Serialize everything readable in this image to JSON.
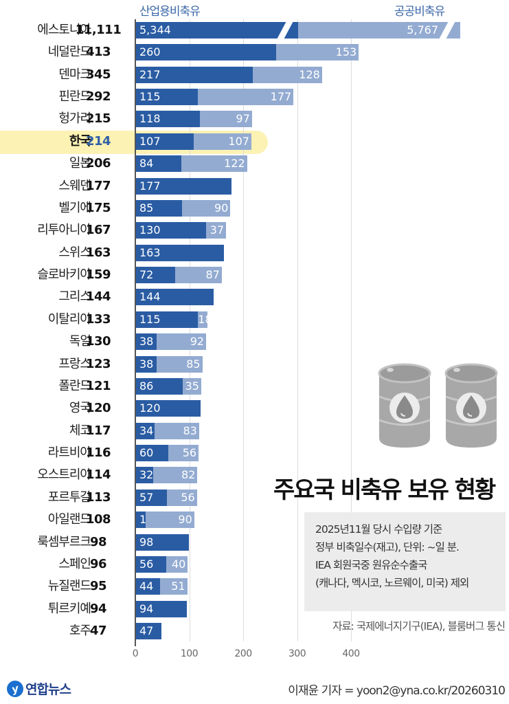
{
  "legend": {
    "industry": "산업용비축유",
    "public": "공공비축유"
  },
  "title": "주요국 비축유 보유 현황",
  "notes": [
    "2025년11월 당시 수입량 기준",
    "정부 비축일수(재고), 단위: ~일 분.",
    "IEA 회원국중 원유순수출국",
    "(캐나다, 멕시코, 노르웨이, 미국) 제외"
  ],
  "source": "자료: 국제에너지기구(IEA), 블룸버그 통신",
  "footer": {
    "logo_text": "연합뉴스",
    "logo_mark": "y",
    "byline": "이재윤 기자 = yoon2@yna.co.kr/20260310"
  },
  "axis": {
    "ticks": [
      "0",
      "100",
      "200",
      "300",
      "400"
    ]
  },
  "colors": {
    "industry": "#2a5ca3",
    "public": "#93abd1",
    "highlight": "#fbf2b4",
    "legend_text": "#3a66a8"
  },
  "rows": [
    {
      "country": "에스토니아",
      "total": "11,111",
      "industry": "5,344",
      "public": "5,767"
    },
    {
      "country": "네덜란드",
      "total": "413",
      "industry": "260",
      "public": "153"
    },
    {
      "country": "덴마크",
      "total": "345",
      "industry": "217",
      "public": "128"
    },
    {
      "country": "핀란드",
      "total": "292",
      "industry": "115",
      "public": "177"
    },
    {
      "country": "헝가리",
      "total": "215",
      "industry": "118",
      "public": "97"
    },
    {
      "country": "한국",
      "total": "214",
      "industry": "107",
      "public": "107"
    },
    {
      "country": "일본",
      "total": "206",
      "industry": "84",
      "public": "122"
    },
    {
      "country": "스웨덴",
      "total": "177",
      "industry": "177",
      "public": ""
    },
    {
      "country": "벨기에",
      "total": "175",
      "industry": "85",
      "public": "90"
    },
    {
      "country": "리투아니아",
      "total": "167",
      "industry": "130",
      "public": "37"
    },
    {
      "country": "스위스",
      "total": "163",
      "industry": "163",
      "public": ""
    },
    {
      "country": "슬로바키아",
      "total": "159",
      "industry": "72",
      "public": "87"
    },
    {
      "country": "그리스",
      "total": "144",
      "industry": "144",
      "public": ""
    },
    {
      "country": "이탈리아",
      "total": "133",
      "industry": "115",
      "public": "18"
    },
    {
      "country": "독일",
      "total": "130",
      "industry": "38",
      "public": "92"
    },
    {
      "country": "프랑스",
      "total": "123",
      "industry": "38",
      "public": "85"
    },
    {
      "country": "폴란드",
      "total": "121",
      "industry": "86",
      "public": "35"
    },
    {
      "country": "영국",
      "total": "120",
      "industry": "120",
      "public": ""
    },
    {
      "country": "체코",
      "total": "117",
      "industry": "34",
      "public": "83"
    },
    {
      "country": "라트비아",
      "total": "116",
      "industry": "60",
      "public": "56"
    },
    {
      "country": "오스트리아",
      "total": "114",
      "industry": "32",
      "public": "82"
    },
    {
      "country": "포르투갈",
      "total": "113",
      "industry": "57",
      "public": "56"
    },
    {
      "country": "아일랜드",
      "total": "108",
      "industry": "18",
      "public": "90"
    },
    {
      "country": "룩셈부르크",
      "total": "98",
      "industry": "98",
      "public": ""
    },
    {
      "country": "스페인",
      "total": "96",
      "industry": "56",
      "public": "40"
    },
    {
      "country": "뉴질랜드",
      "total": "95",
      "industry": "44",
      "public": "51"
    },
    {
      "country": "튀르키예",
      "total": "94",
      "industry": "94",
      "public": ""
    },
    {
      "country": "호주",
      "total": "47",
      "industry": "47",
      "public": ""
    }
  ],
  "chart_data": {
    "type": "bar",
    "orientation": "horizontal",
    "stacked": true,
    "title": "주요국 비축유 보유 현황",
    "subtitle": "2025년11월 당시 수입량 기준 정부 비축일수(재고), 단위: ~일 분. IEA 회원국중 원유순수출국(캐나다, 멕시코, 노르웨이, 미국) 제외",
    "xlabel": "",
    "ylabel": "",
    "xlim": [
      0,
      400
    ],
    "x_ticks": [
      0,
      100,
      200,
      300,
      400
    ],
    "grid": true,
    "legend_position": "top",
    "axis_break": "에스토니아 bar is truncated with break marks in both segments",
    "highlight": "한국",
    "categories": [
      "에스토니아",
      "네덜란드",
      "덴마크",
      "핀란드",
      "헝가리",
      "한국",
      "일본",
      "스웨덴",
      "벨기에",
      "리투아니아",
      "스위스",
      "슬로바키아",
      "그리스",
      "이탈리아",
      "독일",
      "프랑스",
      "폴란드",
      "영국",
      "체코",
      "라트비아",
      "오스트리아",
      "포르투갈",
      "아일랜드",
      "룩셈부르크",
      "스페인",
      "뉴질랜드",
      "튀르키예",
      "호주"
    ],
    "totals": [
      11111,
      413,
      345,
      292,
      215,
      214,
      206,
      177,
      175,
      167,
      163,
      159,
      144,
      133,
      130,
      123,
      121,
      120,
      117,
      116,
      114,
      113,
      108,
      98,
      96,
      95,
      94,
      47
    ],
    "series": [
      {
        "name": "산업용비축유",
        "color": "#2a5ca3",
        "values": [
          5344,
          260,
          217,
          115,
          118,
          107,
          84,
          177,
          85,
          130,
          163,
          72,
          144,
          115,
          38,
          38,
          86,
          120,
          34,
          60,
          32,
          57,
          18,
          98,
          56,
          44,
          94,
          47
        ]
      },
      {
        "name": "공공비축유",
        "color": "#93abd1",
        "values": [
          5767,
          153,
          128,
          177,
          97,
          107,
          122,
          0,
          90,
          37,
          0,
          87,
          0,
          18,
          92,
          85,
          35,
          0,
          83,
          56,
          82,
          56,
          90,
          0,
          40,
          51,
          0,
          0
        ]
      }
    ],
    "source": "자료: 국제에너지기구(IEA), 블룸버그 통신"
  }
}
